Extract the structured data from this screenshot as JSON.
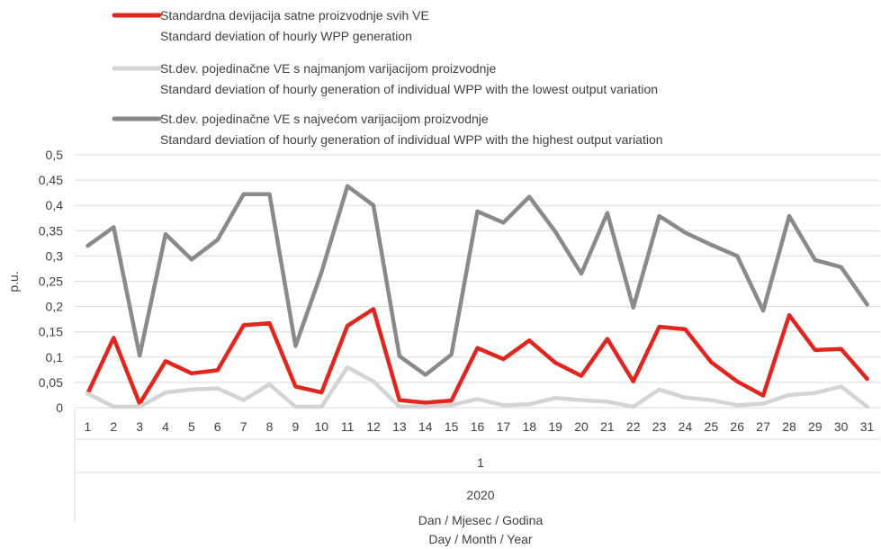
{
  "chart_data": {
    "type": "line",
    "title": "",
    "ylabel": "p.u.",
    "ylim": [
      0,
      0.5
    ],
    "yticks": [
      "0",
      "0,05",
      "0,1",
      "0,15",
      "0,2",
      "0,25",
      "0,3",
      "0,35",
      "0,4",
      "0,45",
      "0,5"
    ],
    "categories": [
      "1",
      "2",
      "3",
      "4",
      "5",
      "6",
      "7",
      "8",
      "9",
      "10",
      "11",
      "12",
      "13",
      "14",
      "15",
      "16",
      "17",
      "18",
      "19",
      "20",
      "21",
      "22",
      "23",
      "24",
      "25",
      "26",
      "27",
      "28",
      "29",
      "30",
      "31"
    ],
    "month_label": "1",
    "year_label": "2020",
    "xlabel_line1": "Dan / Mjesec / Godina",
    "xlabel_line2": "Day / Month / Year",
    "grid": true,
    "legend_position": "top",
    "series": [
      {
        "name": "Standardna devijacija satne proizvodnje svih VE",
        "name_en": "Standard deviation of hourly WPP generation",
        "color": "#e0261f",
        "values": [
          0.028,
          0.138,
          0.008,
          0.092,
          0.068,
          0.074,
          0.163,
          0.167,
          0.042,
          0.03,
          0.162,
          0.195,
          0.015,
          0.01,
          0.014,
          0.118,
          0.096,
          0.133,
          0.089,
          0.063,
          0.136,
          0.052,
          0.16,
          0.155,
          0.09,
          0.052,
          0.024,
          0.183,
          0.114,
          0.116,
          0.057
        ]
      },
      {
        "name": "St.dev. pojedinačne VE s najmanjom varijacijom proizvodnje",
        "name_en": "Standard deviation of hourly generation of individual WPP with the lowest output variation",
        "color": "#d4d4d4",
        "values": [
          0.028,
          0.002,
          0.002,
          0.03,
          0.036,
          0.038,
          0.015,
          0.046,
          0.002,
          0.002,
          0.08,
          0.052,
          0.002,
          0.002,
          0.005,
          0.017,
          0.005,
          0.007,
          0.019,
          0.015,
          0.012,
          0.002,
          0.036,
          0.02,
          0.015,
          0.005,
          0.008,
          0.025,
          0.029,
          0.042,
          0.002
        ]
      },
      {
        "name": "St.dev. pojedinačne VE s najvećom varijacijom proizvodnje",
        "name_en": "Standard deviation of hourly generation of individual WPP with the highest output variation",
        "color": "#8a8a8a",
        "values": [
          0.32,
          0.357,
          0.103,
          0.343,
          0.293,
          0.332,
          0.422,
          0.422,
          0.122,
          0.268,
          0.438,
          0.4,
          0.102,
          0.065,
          0.105,
          0.388,
          0.366,
          0.417,
          0.348,
          0.265,
          0.385,
          0.198,
          0.379,
          0.346,
          0.322,
          0.3,
          0.192,
          0.379,
          0.292,
          0.278,
          0.204
        ]
      }
    ]
  }
}
